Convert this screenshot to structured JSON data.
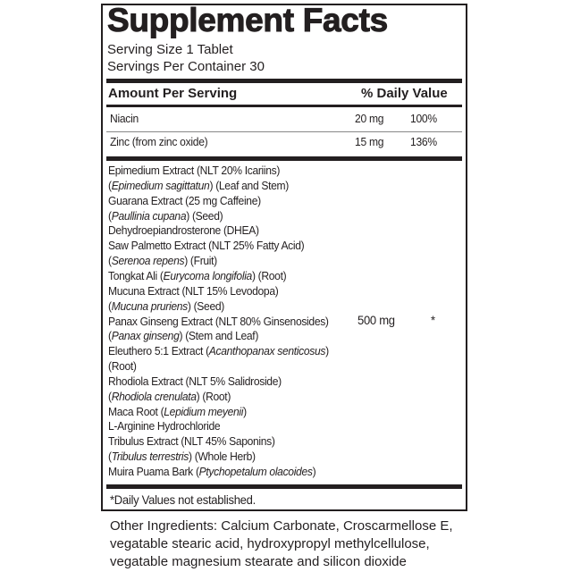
{
  "title": "Supplement Facts",
  "serving_size": "Serving Size 1 Tablet",
  "servings_per_container": "Servings Per Container 30",
  "header": {
    "amount": "Amount Per Serving",
    "dv": "% Daily Value"
  },
  "nutrients": [
    {
      "name": "Niacin",
      "amount": "20 mg",
      "dv": "100%"
    },
    {
      "name": "Zinc (from zinc oxide)",
      "amount": "15 mg",
      "dv": "136%"
    }
  ],
  "blend": {
    "amount": "500 mg",
    "dv": "*",
    "lines": [
      [
        {
          "t": "Epimedium Extract (NLT 20% Icariins)"
        }
      ],
      [
        {
          "t": "("
        },
        {
          "t": "Epimedium sagittatun",
          "i": true
        },
        {
          "t": ") (Leaf and Stem)"
        }
      ],
      [
        {
          "t": "Guarana Extract (25 mg Caffeine)"
        }
      ],
      [
        {
          "t": "("
        },
        {
          "t": "Paullinia cupana",
          "i": true
        },
        {
          "t": ")  (Seed)"
        }
      ],
      [
        {
          "t": "Dehydroepiandrosterone (DHEA)"
        }
      ],
      [
        {
          "t": "Saw Palmetto Extract (NLT 25% Fatty Acid)"
        }
      ],
      [
        {
          "t": "("
        },
        {
          "t": "Serenoa repens",
          "i": true
        },
        {
          "t": ") (Fruit)"
        }
      ],
      [
        {
          "t": "Tongkat Ali ("
        },
        {
          "t": "Eurycoma longifolia",
          "i": true
        },
        {
          "t": ") (Root)"
        }
      ],
      [
        {
          "t": "Mucuna Extract (NLT 15% Levodopa)"
        }
      ],
      [
        {
          "t": "("
        },
        {
          "t": "Mucuna pruriens",
          "i": true
        },
        {
          "t": ") (Seed)"
        }
      ],
      [
        {
          "t": "Panax Ginseng Extract (NLT 80% Ginsenosides)"
        }
      ],
      [
        {
          "t": "("
        },
        {
          "t": "Panax ginseng",
          "i": true
        },
        {
          "t": ") (Stem and Leaf)"
        }
      ],
      [
        {
          "t": "Eleuthero 5:1 Extract ("
        },
        {
          "t": "Acanthopanax senticosus",
          "i": true
        },
        {
          "t": ")"
        }
      ],
      [
        {
          "t": "(Root)"
        }
      ],
      [
        {
          "t": "Rhodiola Extract (NLT 5% Salidroside)"
        }
      ],
      [
        {
          "t": "("
        },
        {
          "t": "Rhodiola crenulata",
          "i": true
        },
        {
          "t": ") (Root)"
        }
      ],
      [
        {
          "t": "Maca Root ("
        },
        {
          "t": "Lepidium meyenii",
          "i": true
        },
        {
          "t": ")"
        }
      ],
      [
        {
          "t": "L-Arginine Hydrochloride"
        }
      ],
      [
        {
          "t": "Tribulus Extract (NLT 45% Saponins)"
        }
      ],
      [
        {
          "t": "("
        },
        {
          "t": "Tribulus terrestris",
          "i": true
        },
        {
          "t": ") (Whole Herb)"
        }
      ],
      [
        {
          "t": "Muira Puama Bark ("
        },
        {
          "t": "Ptychopetalum olacoides",
          "i": true
        },
        {
          "t": ")"
        }
      ]
    ]
  },
  "footnote": "*Daily Values not established.",
  "other_ingredients": [
    "Other Ingredients: Calcium Carbonate, Croscarmellose E,",
    "vegatable stearic acid, hydroxypropyl methylcellulose,",
    "vegatable magnesium stearate and silicon dioxide"
  ]
}
